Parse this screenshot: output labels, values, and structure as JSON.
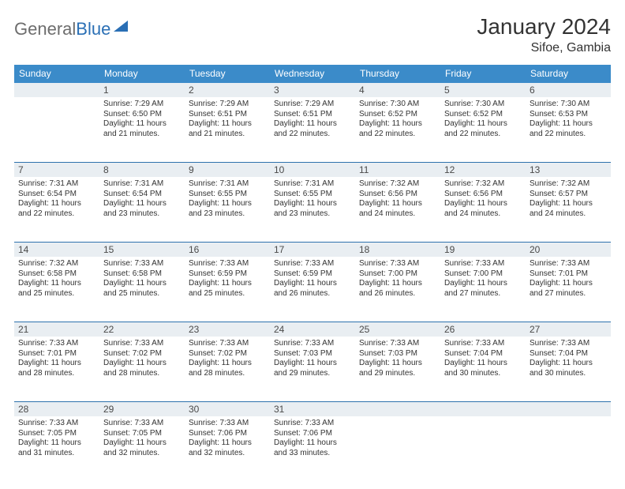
{
  "colors": {
    "header_bg": "#3b8bc9",
    "header_text": "#ffffff",
    "daynum_bg": "#e9eef2",
    "row_divider": "#2e72ad",
    "body_text": "#333333",
    "logo_gray": "#6d6d6d",
    "logo_blue": "#2a6fb5"
  },
  "logo": {
    "part1": "General",
    "part2": "Blue"
  },
  "title": "January 2024",
  "location": "Sifoe, Gambia",
  "weekdays": [
    "Sunday",
    "Monday",
    "Tuesday",
    "Wednesday",
    "Thursday",
    "Friday",
    "Saturday"
  ],
  "weeks": [
    [
      {
        "day": "",
        "lines": [
          "",
          "",
          "",
          ""
        ]
      },
      {
        "day": "1",
        "lines": [
          "Sunrise: 7:29 AM",
          "Sunset: 6:50 PM",
          "Daylight: 11 hours",
          "and 21 minutes."
        ]
      },
      {
        "day": "2",
        "lines": [
          "Sunrise: 7:29 AM",
          "Sunset: 6:51 PM",
          "Daylight: 11 hours",
          "and 21 minutes."
        ]
      },
      {
        "day": "3",
        "lines": [
          "Sunrise: 7:29 AM",
          "Sunset: 6:51 PM",
          "Daylight: 11 hours",
          "and 22 minutes."
        ]
      },
      {
        "day": "4",
        "lines": [
          "Sunrise: 7:30 AM",
          "Sunset: 6:52 PM",
          "Daylight: 11 hours",
          "and 22 minutes."
        ]
      },
      {
        "day": "5",
        "lines": [
          "Sunrise: 7:30 AM",
          "Sunset: 6:52 PM",
          "Daylight: 11 hours",
          "and 22 minutes."
        ]
      },
      {
        "day": "6",
        "lines": [
          "Sunrise: 7:30 AM",
          "Sunset: 6:53 PM",
          "Daylight: 11 hours",
          "and 22 minutes."
        ]
      }
    ],
    [
      {
        "day": "7",
        "lines": [
          "Sunrise: 7:31 AM",
          "Sunset: 6:54 PM",
          "Daylight: 11 hours",
          "and 22 minutes."
        ]
      },
      {
        "day": "8",
        "lines": [
          "Sunrise: 7:31 AM",
          "Sunset: 6:54 PM",
          "Daylight: 11 hours",
          "and 23 minutes."
        ]
      },
      {
        "day": "9",
        "lines": [
          "Sunrise: 7:31 AM",
          "Sunset: 6:55 PM",
          "Daylight: 11 hours",
          "and 23 minutes."
        ]
      },
      {
        "day": "10",
        "lines": [
          "Sunrise: 7:31 AM",
          "Sunset: 6:55 PM",
          "Daylight: 11 hours",
          "and 23 minutes."
        ]
      },
      {
        "day": "11",
        "lines": [
          "Sunrise: 7:32 AM",
          "Sunset: 6:56 PM",
          "Daylight: 11 hours",
          "and 24 minutes."
        ]
      },
      {
        "day": "12",
        "lines": [
          "Sunrise: 7:32 AM",
          "Sunset: 6:56 PM",
          "Daylight: 11 hours",
          "and 24 minutes."
        ]
      },
      {
        "day": "13",
        "lines": [
          "Sunrise: 7:32 AM",
          "Sunset: 6:57 PM",
          "Daylight: 11 hours",
          "and 24 minutes."
        ]
      }
    ],
    [
      {
        "day": "14",
        "lines": [
          "Sunrise: 7:32 AM",
          "Sunset: 6:58 PM",
          "Daylight: 11 hours",
          "and 25 minutes."
        ]
      },
      {
        "day": "15",
        "lines": [
          "Sunrise: 7:33 AM",
          "Sunset: 6:58 PM",
          "Daylight: 11 hours",
          "and 25 minutes."
        ]
      },
      {
        "day": "16",
        "lines": [
          "Sunrise: 7:33 AM",
          "Sunset: 6:59 PM",
          "Daylight: 11 hours",
          "and 25 minutes."
        ]
      },
      {
        "day": "17",
        "lines": [
          "Sunrise: 7:33 AM",
          "Sunset: 6:59 PM",
          "Daylight: 11 hours",
          "and 26 minutes."
        ]
      },
      {
        "day": "18",
        "lines": [
          "Sunrise: 7:33 AM",
          "Sunset: 7:00 PM",
          "Daylight: 11 hours",
          "and 26 minutes."
        ]
      },
      {
        "day": "19",
        "lines": [
          "Sunrise: 7:33 AM",
          "Sunset: 7:00 PM",
          "Daylight: 11 hours",
          "and 27 minutes."
        ]
      },
      {
        "day": "20",
        "lines": [
          "Sunrise: 7:33 AM",
          "Sunset: 7:01 PM",
          "Daylight: 11 hours",
          "and 27 minutes."
        ]
      }
    ],
    [
      {
        "day": "21",
        "lines": [
          "Sunrise: 7:33 AM",
          "Sunset: 7:01 PM",
          "Daylight: 11 hours",
          "and 28 minutes."
        ]
      },
      {
        "day": "22",
        "lines": [
          "Sunrise: 7:33 AM",
          "Sunset: 7:02 PM",
          "Daylight: 11 hours",
          "and 28 minutes."
        ]
      },
      {
        "day": "23",
        "lines": [
          "Sunrise: 7:33 AM",
          "Sunset: 7:02 PM",
          "Daylight: 11 hours",
          "and 28 minutes."
        ]
      },
      {
        "day": "24",
        "lines": [
          "Sunrise: 7:33 AM",
          "Sunset: 7:03 PM",
          "Daylight: 11 hours",
          "and 29 minutes."
        ]
      },
      {
        "day": "25",
        "lines": [
          "Sunrise: 7:33 AM",
          "Sunset: 7:03 PM",
          "Daylight: 11 hours",
          "and 29 minutes."
        ]
      },
      {
        "day": "26",
        "lines": [
          "Sunrise: 7:33 AM",
          "Sunset: 7:04 PM",
          "Daylight: 11 hours",
          "and 30 minutes."
        ]
      },
      {
        "day": "27",
        "lines": [
          "Sunrise: 7:33 AM",
          "Sunset: 7:04 PM",
          "Daylight: 11 hours",
          "and 30 minutes."
        ]
      }
    ],
    [
      {
        "day": "28",
        "lines": [
          "Sunrise: 7:33 AM",
          "Sunset: 7:05 PM",
          "Daylight: 11 hours",
          "and 31 minutes."
        ]
      },
      {
        "day": "29",
        "lines": [
          "Sunrise: 7:33 AM",
          "Sunset: 7:05 PM",
          "Daylight: 11 hours",
          "and 32 minutes."
        ]
      },
      {
        "day": "30",
        "lines": [
          "Sunrise: 7:33 AM",
          "Sunset: 7:06 PM",
          "Daylight: 11 hours",
          "and 32 minutes."
        ]
      },
      {
        "day": "31",
        "lines": [
          "Sunrise: 7:33 AM",
          "Sunset: 7:06 PM",
          "Daylight: 11 hours",
          "and 33 minutes."
        ]
      },
      {
        "day": "",
        "lines": [
          "",
          "",
          "",
          ""
        ]
      },
      {
        "day": "",
        "lines": [
          "",
          "",
          "",
          ""
        ]
      },
      {
        "day": "",
        "lines": [
          "",
          "",
          "",
          ""
        ]
      }
    ]
  ]
}
